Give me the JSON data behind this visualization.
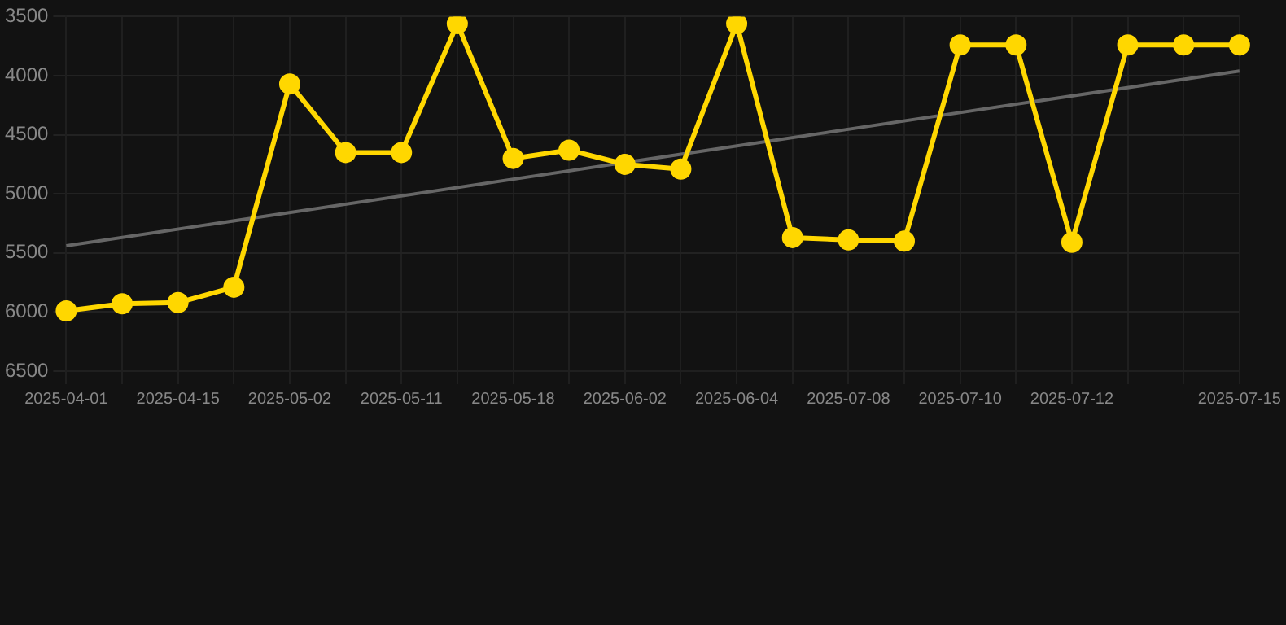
{
  "chart_data": {
    "type": "line",
    "categories": [
      "2025-04-01",
      null,
      "2025-04-15",
      null,
      "2025-05-02",
      null,
      "2025-05-11",
      null,
      "2025-05-18",
      null,
      "2025-06-02",
      null,
      "2025-06-04",
      null,
      "2025-07-08",
      null,
      "2025-07-10",
      null,
      "2025-07-12",
      null,
      null,
      "2025-07-15"
    ],
    "series": [
      {
        "color": "#ffd700",
        "values": [
          5990,
          5930,
          5920,
          5790,
          4070,
          4650,
          4650,
          3560,
          4700,
          4630,
          4750,
          4790,
          3560,
          5370,
          5390,
          5400,
          3740,
          3740,
          5410,
          3740,
          3740,
          3740
        ],
        "marker": "circle"
      },
      {
        "type": "line",
        "color": "#666666",
        "values": [
          5440,
          null,
          null,
          null,
          null,
          null,
          null,
          null,
          null,
          null,
          null,
          null,
          null,
          null,
          null,
          null,
          null,
          null,
          null,
          null,
          null,
          3960
        ],
        "marker": "none"
      }
    ],
    "ylim": [
      6500,
      3500
    ],
    "yticks": [
      3500,
      4000,
      4500,
      5000,
      5500,
      6000,
      6500
    ],
    "grid": true,
    "legend": false
  }
}
